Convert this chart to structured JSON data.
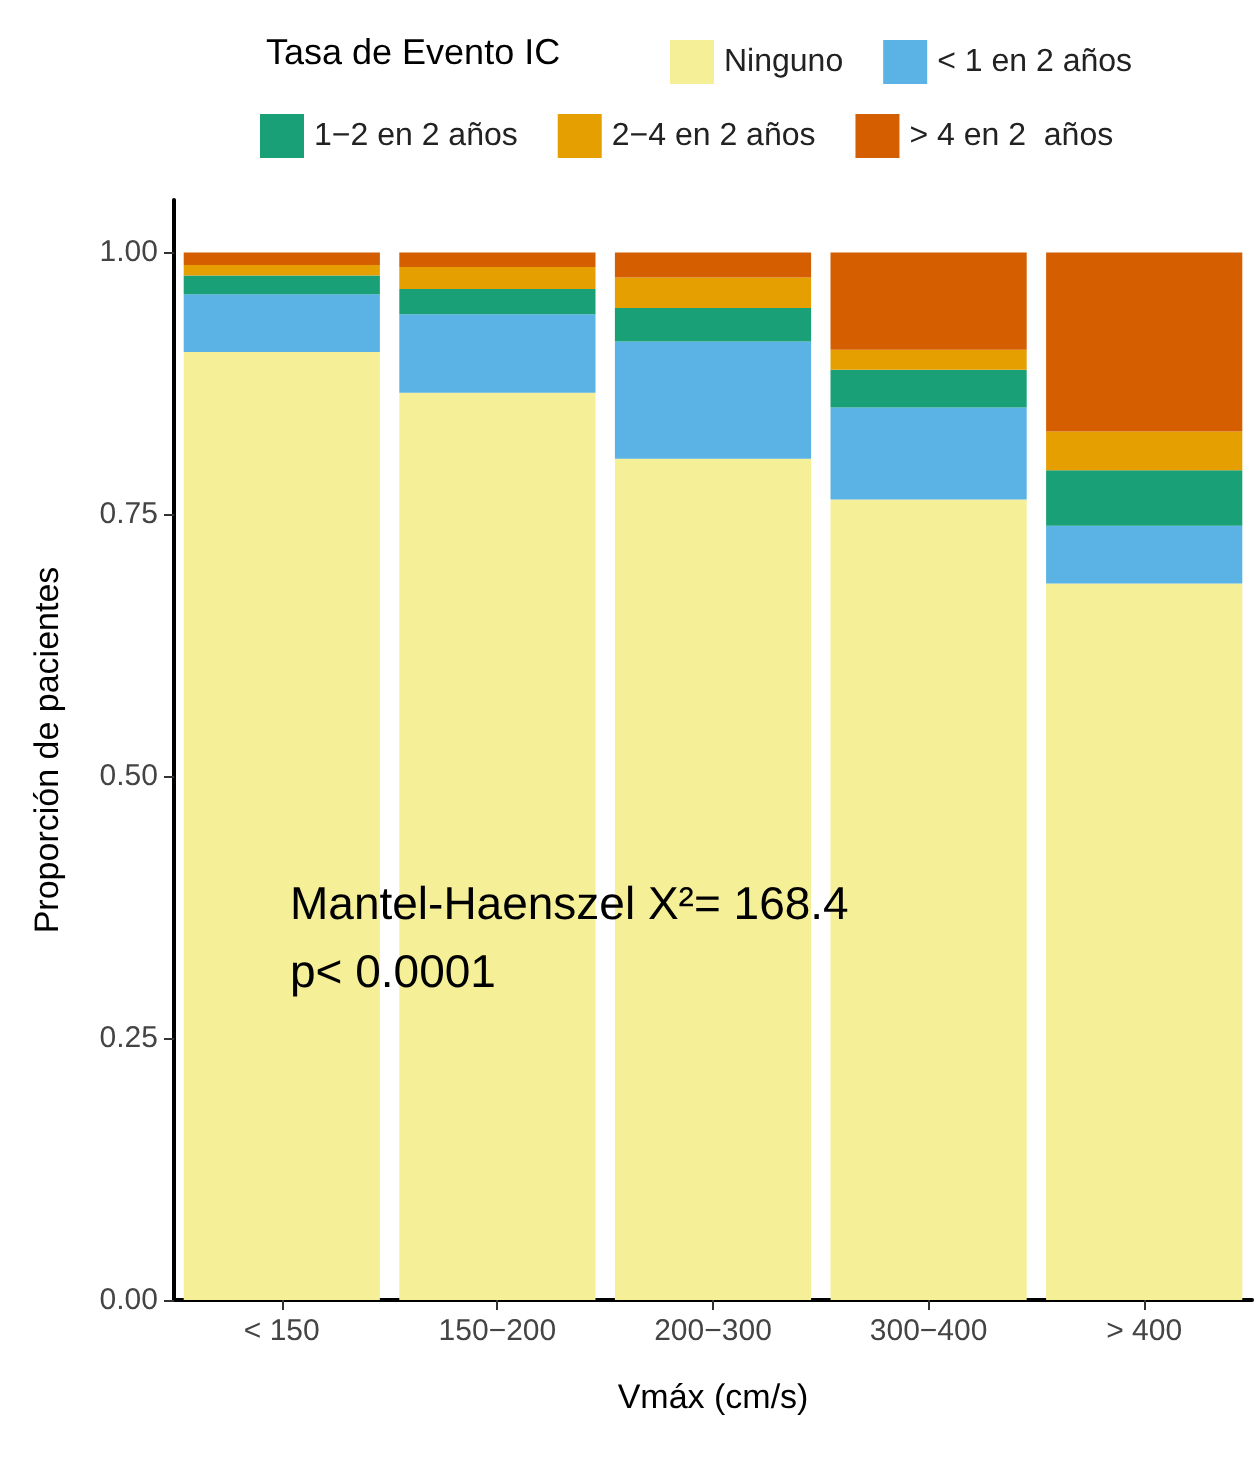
{
  "chart_data": {
    "type": "bar",
    "stacked": true,
    "xlabel": "Vmáx (cm/s)",
    "ylabel": "Proporción de pacientes",
    "legend_title": "Tasa de Evento IC",
    "legend": "top",
    "grid": false,
    "categories": [
      "< 150",
      "150−200",
      "200−300",
      "300−400",
      "> 400"
    ],
    "series": [
      {
        "name": "Ninguno",
        "color": "#f5ef97",
        "values": [
          0.905,
          0.866,
          0.803,
          0.764,
          0.684
        ]
      },
      {
        "name": "< 1 en 2 años",
        "color": "#5ab2e5",
        "values": [
          0.055,
          0.075,
          0.112,
          0.088,
          0.055
        ]
      },
      {
        "name": "1−2 en 2 años",
        "color": "#19a077",
        "values": [
          0.018,
          0.024,
          0.032,
          0.036,
          0.053
        ]
      },
      {
        "name": "2−4 en 2 años",
        "color": "#e69f00",
        "values": [
          0.01,
          0.021,
          0.029,
          0.019,
          0.037
        ]
      },
      {
        "name": "> 4 en 2  años",
        "color": "#d55e00",
        "values": [
          0.012,
          0.014,
          0.024,
          0.093,
          0.171
        ]
      }
    ],
    "ylim": [
      0,
      1.05
    ],
    "yticks": [
      {
        "value": 0,
        "label": "0.00"
      },
      {
        "value": 0.25,
        "label": "0.25"
      },
      {
        "value": 0.5,
        "label": "0.50"
      },
      {
        "value": 0.75,
        "label": "0.75"
      },
      {
        "value": 1,
        "label": "1.00"
      }
    ],
    "annotations": [
      "Mantel-Haenszel X²= 168.4",
      "p< 0.0001"
    ]
  }
}
